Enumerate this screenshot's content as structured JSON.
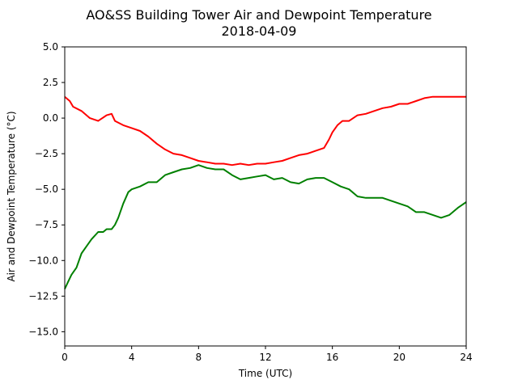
{
  "chart_data": {
    "type": "line",
    "title_line1": "AO&SS Building Tower Air and Dewpoint Temperature",
    "title_line2": "2018-04-09",
    "xlabel": "Time (UTC)",
    "ylabel": "Air and Dewpoint Temperature (°C)",
    "xlim": [
      0,
      24
    ],
    "ylim": [
      -16,
      5
    ],
    "xticks": [
      0,
      4,
      8,
      12,
      16,
      20,
      24
    ],
    "yticks": [
      5.0,
      2.5,
      0.0,
      -2.5,
      -5.0,
      -7.5,
      -10.0,
      -12.5,
      -15.0
    ],
    "ytick_labels": [
      "5.0",
      "2.5",
      "0.0",
      "−2.5",
      "−5.0",
      "−7.5",
      "−10.0",
      "−12.5",
      "−15.0"
    ],
    "xtick_labels": [
      "0",
      "4",
      "8",
      "12",
      "16",
      "20",
      "24"
    ],
    "grid": false,
    "legend": "none",
    "series": [
      {
        "color": "#ff0000",
        "x": [
          0,
          0.3,
          0.5,
          1,
          1.5,
          2,
          2.5,
          2.8,
          3,
          3.5,
          4,
          4.5,
          5,
          5.5,
          6,
          6.5,
          7,
          7.5,
          8,
          8.5,
          9,
          9.5,
          10,
          10.5,
          11,
          11.5,
          12,
          12.5,
          13,
          13.5,
          14,
          14.5,
          15,
          15.5,
          15.8,
          16,
          16.3,
          16.6,
          17,
          17.5,
          18,
          18.5,
          19,
          19.5,
          20,
          20.5,
          21,
          21.5,
          22,
          22.5,
          23,
          23.5,
          24
        ],
        "y": [
          1.5,
          1.2,
          0.8,
          0.5,
          0.0,
          -0.2,
          0.2,
          0.3,
          -0.2,
          -0.5,
          -0.7,
          -0.9,
          -1.3,
          -1.8,
          -2.2,
          -2.5,
          -2.6,
          -2.8,
          -3.0,
          -3.1,
          -3.2,
          -3.2,
          -3.3,
          -3.2,
          -3.3,
          -3.2,
          -3.2,
          -3.1,
          -3.0,
          -2.8,
          -2.6,
          -2.5,
          -2.3,
          -2.1,
          -1.5,
          -1.0,
          -0.5,
          -0.2,
          -0.2,
          0.2,
          0.3,
          0.5,
          0.7,
          0.8,
          1.0,
          1.0,
          1.2,
          1.4,
          1.5,
          1.5,
          1.5,
          1.5,
          1.5
        ]
      },
      {
        "color": "#008000",
        "x": [
          0,
          0.2,
          0.4,
          0.7,
          1,
          1.3,
          1.6,
          2,
          2.3,
          2.5,
          2.8,
          3,
          3.2,
          3.5,
          3.8,
          4,
          4.5,
          5,
          5.5,
          6,
          6.5,
          7,
          7.5,
          8,
          8.5,
          9,
          9.5,
          10,
          10.5,
          11,
          11.5,
          12,
          12.5,
          13,
          13.5,
          14,
          14.5,
          15,
          15.5,
          16,
          16.5,
          17,
          17.5,
          18,
          18.5,
          19,
          19.5,
          20,
          20.5,
          21,
          21.5,
          22,
          22.5,
          23,
          23.5,
          24
        ],
        "y": [
          -12.0,
          -11.5,
          -11.0,
          -10.5,
          -9.5,
          -9.0,
          -8.5,
          -8.0,
          -8.0,
          -7.8,
          -7.8,
          -7.5,
          -7.0,
          -6.0,
          -5.2,
          -5.0,
          -4.8,
          -4.5,
          -4.5,
          -4.0,
          -3.8,
          -3.6,
          -3.5,
          -3.3,
          -3.5,
          -3.6,
          -3.6,
          -4.0,
          -4.3,
          -4.2,
          -4.1,
          -4.0,
          -4.3,
          -4.2,
          -4.5,
          -4.6,
          -4.3,
          -4.2,
          -4.2,
          -4.5,
          -4.8,
          -5.0,
          -5.5,
          -5.6,
          -5.6,
          -5.6,
          -5.8,
          -6.0,
          -6.2,
          -6.6,
          -6.6,
          -6.8,
          -7.0,
          -6.8,
          -6.3,
          -5.9
        ]
      }
    ]
  }
}
